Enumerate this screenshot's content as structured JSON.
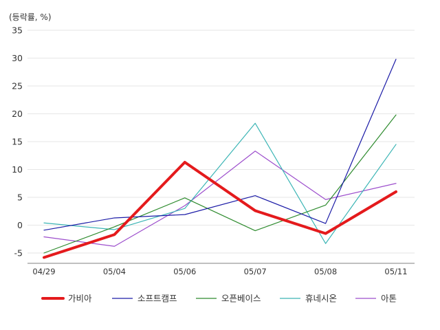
{
  "chart_data": {
    "type": "line",
    "unit_label": "(등락률, %)",
    "categories": [
      "04/29",
      "05/04",
      "05/06",
      "05/07",
      "05/08",
      "05/11"
    ],
    "ylim": [
      -7,
      35
    ],
    "yticks": [
      -5,
      0,
      5,
      10,
      15,
      20,
      25,
      30,
      35
    ],
    "grid": true,
    "legend_position": "bottom",
    "series": [
      {
        "name": "가비아",
        "color": "#e41a1c",
        "values": [
          -5.8,
          -1.7,
          11.3,
          2.6,
          -1.5,
          6.0
        ]
      },
      {
        "name": "소프트캠프",
        "color": "#1a1aa6",
        "values": [
          -0.9,
          1.3,
          1.9,
          5.3,
          0.3,
          29.8
        ]
      },
      {
        "name": "오픈베이스",
        "color": "#2e8b2e",
        "values": [
          -5.0,
          -0.3,
          4.9,
          -1.0,
          3.6,
          19.8
        ]
      },
      {
        "name": "휴네시온",
        "color": "#3bb5b5",
        "values": [
          0.4,
          -0.8,
          3.0,
          18.3,
          -3.3,
          14.5
        ]
      },
      {
        "name": "아톤",
        "color": "#9c4dcc",
        "values": [
          -2.1,
          -3.8,
          3.5,
          13.3,
          4.6,
          7.5
        ]
      }
    ]
  }
}
